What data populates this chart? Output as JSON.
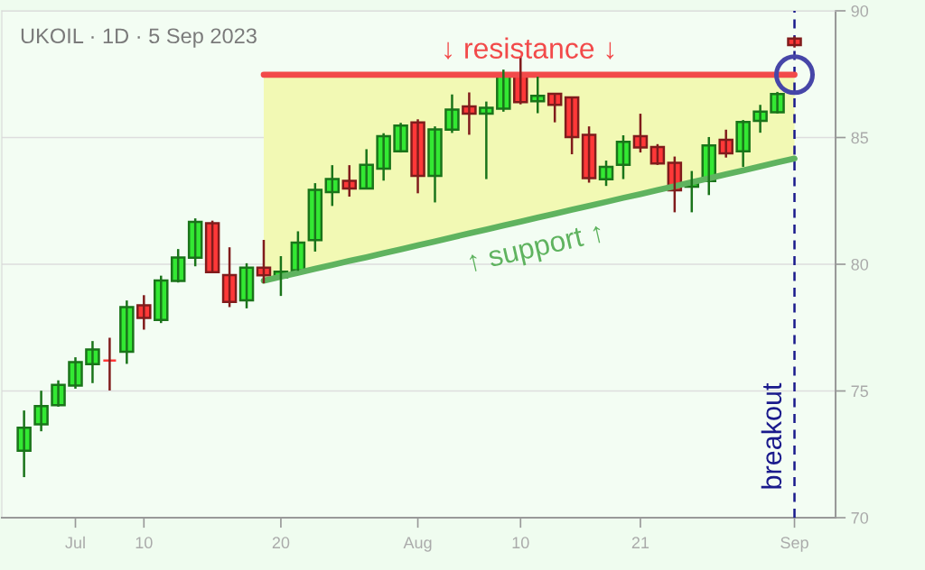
{
  "chart_data": {
    "type": "candlestick",
    "title": "UKOIL · 1D · 5 Sep 2023",
    "categories": [
      null,
      null,
      null,
      "Jul",
      null,
      null,
      null,
      "10",
      null,
      null,
      null,
      null,
      null,
      null,
      null,
      "20",
      null,
      null,
      null,
      null,
      null,
      null,
      null,
      "Aug",
      null,
      null,
      null,
      null,
      null,
      "10",
      null,
      null,
      null,
      null,
      null,
      null,
      "21",
      null,
      null,
      null,
      null,
      null,
      null,
      null,
      null,
      "Sep"
    ],
    "ohlc": [
      [
        72.64,
        74.23,
        71.6,
        73.55
      ],
      [
        73.68,
        75.01,
        73.41,
        74.4
      ],
      [
        74.44,
        75.42,
        74.38,
        75.24
      ],
      [
        75.21,
        76.33,
        75.09,
        76.14
      ],
      [
        76.06,
        76.97,
        75.31,
        76.64
      ],
      [
        76.2,
        77.1,
        75.02,
        76.2
      ],
      [
        76.55,
        78.57,
        76.07,
        78.31
      ],
      [
        78.38,
        78.78,
        77.42,
        77.88
      ],
      [
        77.8,
        79.55,
        77.68,
        79.36
      ],
      [
        79.34,
        80.6,
        79.28,
        80.27
      ],
      [
        80.26,
        81.81,
        79.92,
        81.67
      ],
      [
        81.62,
        81.72,
        79.66,
        79.69
      ],
      [
        79.57,
        80.67,
        78.31,
        78.51
      ],
      [
        78.58,
        80.04,
        78.26,
        79.87
      ],
      [
        79.87,
        80.96,
        79.25,
        79.56
      ],
      [
        79.48,
        80.32,
        78.75,
        79.71
      ],
      [
        79.76,
        81.3,
        79.74,
        80.85
      ],
      [
        80.95,
        83.2,
        80.5,
        82.94
      ],
      [
        82.85,
        83.91,
        82.3,
        83.36
      ],
      [
        83.29,
        83.91,
        82.67,
        82.99
      ],
      [
        82.99,
        84.54,
        82.99,
        83.92
      ],
      [
        83.77,
        85.17,
        83.3,
        85.05
      ],
      [
        84.46,
        85.58,
        84.41,
        85.47
      ],
      [
        85.6,
        85.72,
        82.8,
        83.49
      ],
      [
        83.49,
        85.44,
        82.44,
        85.32
      ],
      [
        85.31,
        86.7,
        85.18,
        86.1
      ],
      [
        86.23,
        86.78,
        85.11,
        85.94
      ],
      [
        85.94,
        86.42,
        83.36,
        86.17
      ],
      [
        86.14,
        87.68,
        86.02,
        87.49
      ],
      [
        87.49,
        88.18,
        86.31,
        86.4
      ],
      [
        86.43,
        87.4,
        85.96,
        86.65
      ],
      [
        86.73,
        86.75,
        85.6,
        86.29
      ],
      [
        86.58,
        86.58,
        84.34,
        85.02
      ],
      [
        85.11,
        85.44,
        83.22,
        83.4
      ],
      [
        83.35,
        84.09,
        83.09,
        83.84
      ],
      [
        83.92,
        85.09,
        83.36,
        84.83
      ],
      [
        85.05,
        85.94,
        84.41,
        84.61
      ],
      [
        84.63,
        84.74,
        83.92,
        83.98
      ],
      [
        84.0,
        84.25,
        82.05,
        82.92
      ],
      [
        83.06,
        83.68,
        82.05,
        83.19
      ],
      [
        83.28,
        85.02,
        82.73,
        84.69
      ],
      [
        84.91,
        85.31,
        84.21,
        84.38
      ],
      [
        84.46,
        85.69,
        83.84,
        85.61
      ],
      [
        85.66,
        86.29,
        85.19,
        86.02
      ],
      [
        86.0,
        86.8,
        85.95,
        86.72
      ],
      [
        88.91,
        88.99,
        88.55,
        88.65
      ]
    ],
    "colors": [
      "#33e833",
      "#33e833",
      "#33e833",
      "#33e833",
      "#33e833",
      "#ff3838",
      "#33e833",
      "#ff3838",
      "#33e833",
      "#33e833",
      "#33e833",
      "#ff3838",
      "#ff3838",
      "#33e833",
      "#ff3838",
      "#33e833",
      "#33e833",
      "#33e833",
      "#33e833",
      "#ff3838",
      "#33e833",
      "#33e833",
      "#33e833",
      "#ff3838",
      "#33e833",
      "#33e833",
      "#ff3838",
      "#33e833",
      "#33e833",
      "#ff3838",
      "#33e833",
      "#ff3838",
      "#ff3838",
      "#ff3838",
      "#33e833",
      "#33e833",
      "#ff3838",
      "#ff3838",
      "#ff3838",
      "#33e833",
      "#33e833",
      "#ff3838",
      "#33e833",
      "#33e833",
      "#33e833",
      "#ff3838"
    ],
    "series": [
      {
        "type": "line",
        "name": "↓ resistance ↓",
        "color": "#f24a4a",
        "values": [
          null,
          null,
          null,
          null,
          null,
          null,
          null,
          null,
          null,
          null,
          null,
          null,
          null,
          null,
          87.48,
          87.48,
          87.48,
          87.48,
          87.48,
          87.48,
          87.48,
          87.48,
          87.48,
          87.48,
          87.48,
          87.48,
          87.48,
          87.48,
          87.48,
          87.48,
          87.48,
          87.48,
          87.48,
          87.48,
          87.48,
          87.48,
          87.48,
          87.48,
          87.48,
          87.48,
          87.48,
          87.48,
          87.48,
          87.48,
          87.48,
          87.48
        ]
      },
      {
        "type": "line",
        "name": "↑ support ↑",
        "color": "#5fb35f",
        "values": [
          null,
          null,
          null,
          null,
          null,
          null,
          null,
          null,
          null,
          null,
          null,
          null,
          null,
          null,
          79.35,
          79.51,
          79.66,
          79.82,
          79.97,
          80.13,
          80.28,
          80.44,
          80.59,
          80.75,
          80.9,
          81.06,
          81.22,
          81.37,
          81.53,
          81.68,
          81.84,
          81.99,
          82.15,
          82.3,
          82.46,
          82.62,
          82.77,
          82.93,
          83.08,
          83.24,
          83.39,
          83.55,
          83.7,
          83.86,
          84.02,
          84.17
        ]
      },
      {
        "type": "scatter",
        "marker": "circle",
        "color": "#4646a8",
        "values": [
          null,
          null,
          null,
          null,
          null,
          null,
          null,
          null,
          null,
          null,
          null,
          null,
          null,
          null,
          null,
          null,
          null,
          null,
          null,
          null,
          null,
          null,
          null,
          null,
          null,
          null,
          null,
          null,
          null,
          null,
          null,
          null,
          null,
          null,
          null,
          null,
          null,
          null,
          null,
          null,
          null,
          null,
          null,
          null,
          null,
          87.48
        ]
      }
    ],
    "ref_lines": [
      {
        "axis": "x",
        "value": "Sep",
        "label": "breakout",
        "color": "#1a1a8c",
        "line_style": "dashed"
      }
    ],
    "ylim": [
      70,
      90
    ],
    "yticks": [
      70,
      75,
      80,
      85,
      90
    ],
    "grid": "y"
  }
}
